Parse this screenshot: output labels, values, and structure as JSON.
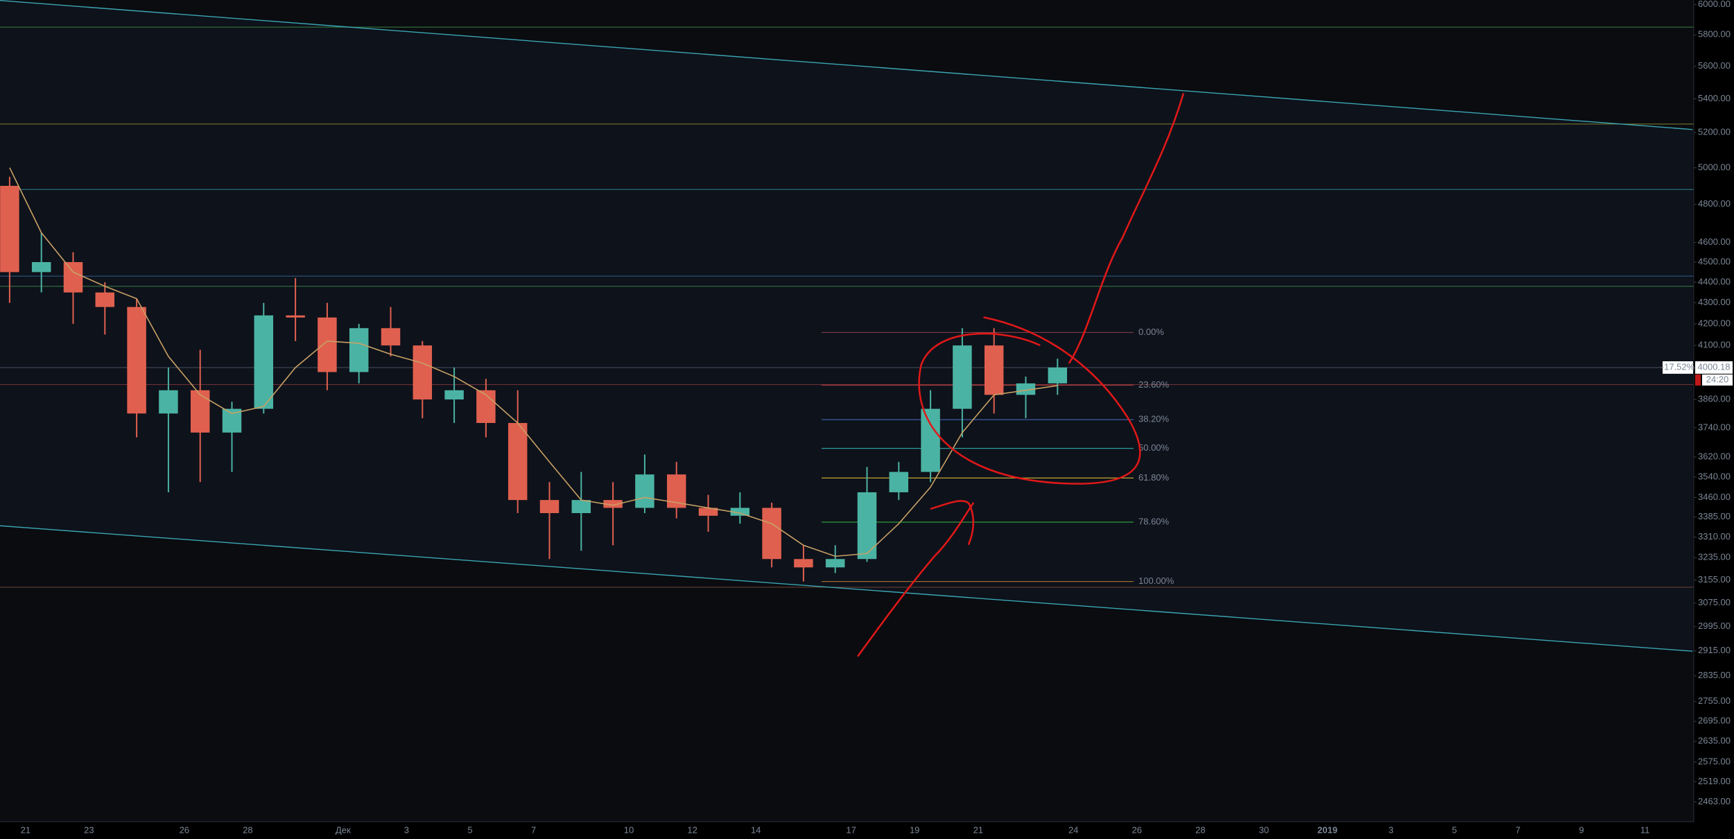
{
  "chart_data": {
    "type": "candlestick",
    "ylim": [
      2409,
      6030
    ],
    "log_scale": true,
    "up_color": "#4bb3a3",
    "down_color": "#e0604f",
    "yticks": [
      {
        "value": 6000,
        "label": "6000.00"
      },
      {
        "value": 5800,
        "label": "5800.00"
      },
      {
        "value": 5600,
        "label": "5600.00"
      },
      {
        "value": 5400,
        "label": "5400.00"
      },
      {
        "value": 5200,
        "label": "5200.00"
      },
      {
        "value": 5000,
        "label": "5000.00"
      },
      {
        "value": 4800,
        "label": "4800.00"
      },
      {
        "value": 4600,
        "label": "4600.00"
      },
      {
        "value": 4500,
        "label": "4500.00"
      },
      {
        "value": 4400,
        "label": "4400.00"
      },
      {
        "value": 4300,
        "label": "4300.00"
      },
      {
        "value": 4200,
        "label": "4200.00"
      },
      {
        "value": 4100,
        "label": "4100.00"
      },
      {
        "value": 3860,
        "label": "3860.00"
      },
      {
        "value": 3740,
        "label": "3740.00"
      },
      {
        "value": 3620,
        "label": "3620.00"
      },
      {
        "value": 3540,
        "label": "3540.00"
      },
      {
        "value": 3460,
        "label": "3460.00"
      },
      {
        "value": 3385,
        "label": "3385.00"
      },
      {
        "value": 3310,
        "label": "3310.00"
      },
      {
        "value": 3235,
        "label": "3235.00"
      },
      {
        "value": 3155,
        "label": "3155.00"
      },
      {
        "value": 3075,
        "label": "3075.00"
      },
      {
        "value": 2995,
        "label": "2995.00"
      },
      {
        "value": 2915,
        "label": "2915.00"
      },
      {
        "value": 2835,
        "label": "2835.00"
      },
      {
        "value": 2755,
        "label": "2755.00"
      },
      {
        "value": 2695,
        "label": "2695.00"
      },
      {
        "value": 2635,
        "label": "2635.00"
      },
      {
        "value": 2575,
        "label": "2575.00"
      },
      {
        "value": 2519,
        "label": "2519.00"
      },
      {
        "value": 2463,
        "label": "2463.00"
      }
    ],
    "categories": [
      null,
      "21",
      null,
      "23",
      null,
      null,
      "26",
      null,
      "28",
      null,
      null,
      "Дек",
      null,
      "3",
      null,
      "5",
      null,
      "7",
      null,
      null,
      "10",
      null,
      "12",
      null,
      "14",
      null,
      null,
      "17",
      null,
      "19",
      null,
      "21",
      null,
      null,
      "24",
      null,
      "26",
      null,
      "28",
      null,
      "30",
      null,
      "2019",
      null,
      "3",
      null,
      "5",
      null,
      "7",
      null,
      "9",
      null,
      "11",
      null
    ],
    "open": [
      4900,
      4450,
      4500,
      4350,
      4280,
      3800,
      3900,
      3720,
      3820,
      4240,
      4230,
      3980,
      4180,
      4100,
      3860,
      3900,
      3760,
      3450,
      3400,
      3450,
      3420,
      3550,
      3420,
      3390,
      3420,
      3230,
      3200,
      3230,
      3480,
      3560,
      3820,
      4100,
      3880,
      3930,
      null,
      null,
      null,
      null,
      null,
      null,
      null,
      null,
      null,
      null,
      null,
      null,
      null,
      null,
      null,
      null,
      null,
      null,
      null,
      null
    ],
    "high": [
      4950,
      4650,
      4550,
      4400,
      4320,
      4000,
      4080,
      3850,
      4300,
      4420,
      4300,
      4200,
      4280,
      4120,
      4000,
      3950,
      3900,
      3520,
      3560,
      3520,
      3630,
      3600,
      3470,
      3480,
      3440,
      3280,
      3280,
      3580,
      3600,
      3900,
      4180,
      4180,
      3960,
      4040,
      null,
      null,
      null,
      null,
      null,
      null,
      null,
      null,
      null,
      null,
      null,
      null,
      null,
      null,
      null,
      null,
      null,
      null,
      null,
      null
    ],
    "low": [
      4300,
      4350,
      4200,
      4150,
      3700,
      3480,
      3520,
      3560,
      3800,
      4120,
      3900,
      3930,
      4050,
      3780,
      3760,
      3700,
      3400,
      3230,
      3260,
      3280,
      3400,
      3380,
      3330,
      3360,
      3200,
      3150,
      3180,
      3220,
      3450,
      3520,
      3700,
      3800,
      3780,
      3880,
      null,
      null,
      null,
      null,
      null,
      null,
      null,
      null,
      null,
      null,
      null,
      null,
      null,
      null,
      null,
      null,
      null,
      null,
      null,
      null
    ],
    "close": [
      4450,
      4500,
      4350,
      4280,
      3800,
      3900,
      3720,
      3820,
      4240,
      4230,
      3980,
      4180,
      4100,
      3860,
      3900,
      3760,
      3450,
      3400,
      3450,
      3420,
      3550,
      3420,
      3390,
      3420,
      3230,
      3200,
      3230,
      3480,
      3560,
      3820,
      4100,
      3880,
      3930,
      4000.18,
      null,
      null,
      null,
      null,
      null,
      null,
      null,
      null,
      null,
      null,
      null,
      null,
      null,
      null,
      null,
      null,
      null,
      null,
      null,
      null
    ],
    "moving_average": {
      "color": "#c8a165",
      "values": [
        5000,
        4650,
        4450,
        4380,
        4320,
        4050,
        3880,
        3800,
        3830,
        4000,
        4120,
        4110,
        4060,
        4020,
        3960,
        3880,
        3760,
        3600,
        3450,
        3430,
        3460,
        3440,
        3420,
        3400,
        3360,
        3280,
        3240,
        3250,
        3360,
        3500,
        3720,
        3880,
        3900,
        3920,
        null,
        null,
        null,
        null,
        null,
        null,
        null,
        null,
        null,
        null,
        null,
        null,
        null,
        null,
        null,
        null,
        null,
        null,
        null,
        null
      ]
    },
    "hlines": [
      {
        "price": 5850,
        "color": "#2f6b3a"
      },
      {
        "price": 5250,
        "color": "#6b6a2a"
      },
      {
        "price": 4880,
        "color": "#2a6b73"
      },
      {
        "price": 4430,
        "color": "#2a4f73"
      },
      {
        "price": 4380,
        "color": "#2f6b3a"
      },
      {
        "price": 4000,
        "color": "#3a4452"
      },
      {
        "price": 3925,
        "color": "#6b2f35"
      },
      {
        "price": 3130,
        "color": "#5a3a30"
      }
    ],
    "trendlines": [
      {
        "x": [
          0,
          53.5
        ],
        "y": [
          6030,
          5218
        ],
        "color": "#3aa6b3"
      },
      {
        "x": [
          0,
          53.5
        ],
        "y": [
          3354,
          2914
        ],
        "color": "#3aa6b3"
      }
    ],
    "fib_levels": [
      {
        "label": "0.00%",
        "price": 4160,
        "color": "#7d3b46"
      },
      {
        "label": "23.60%",
        "price": 3922,
        "color": "#a33a3a"
      },
      {
        "label": "38.20%",
        "price": 3774,
        "color": "#3a5fa0"
      },
      {
        "label": "50.00%",
        "price": 3655,
        "color": "#2b9a9a"
      },
      {
        "label": "61.80%",
        "price": 3536,
        "color": "#c0a630"
      },
      {
        "label": "78.60%",
        "price": 3366,
        "color": "#2f9a3a"
      },
      {
        "label": "100.00%",
        "price": 3150,
        "color": "#9a6a30"
      }
    ],
    "change_label": "-17.52%",
    "countdown": "24:20"
  }
}
